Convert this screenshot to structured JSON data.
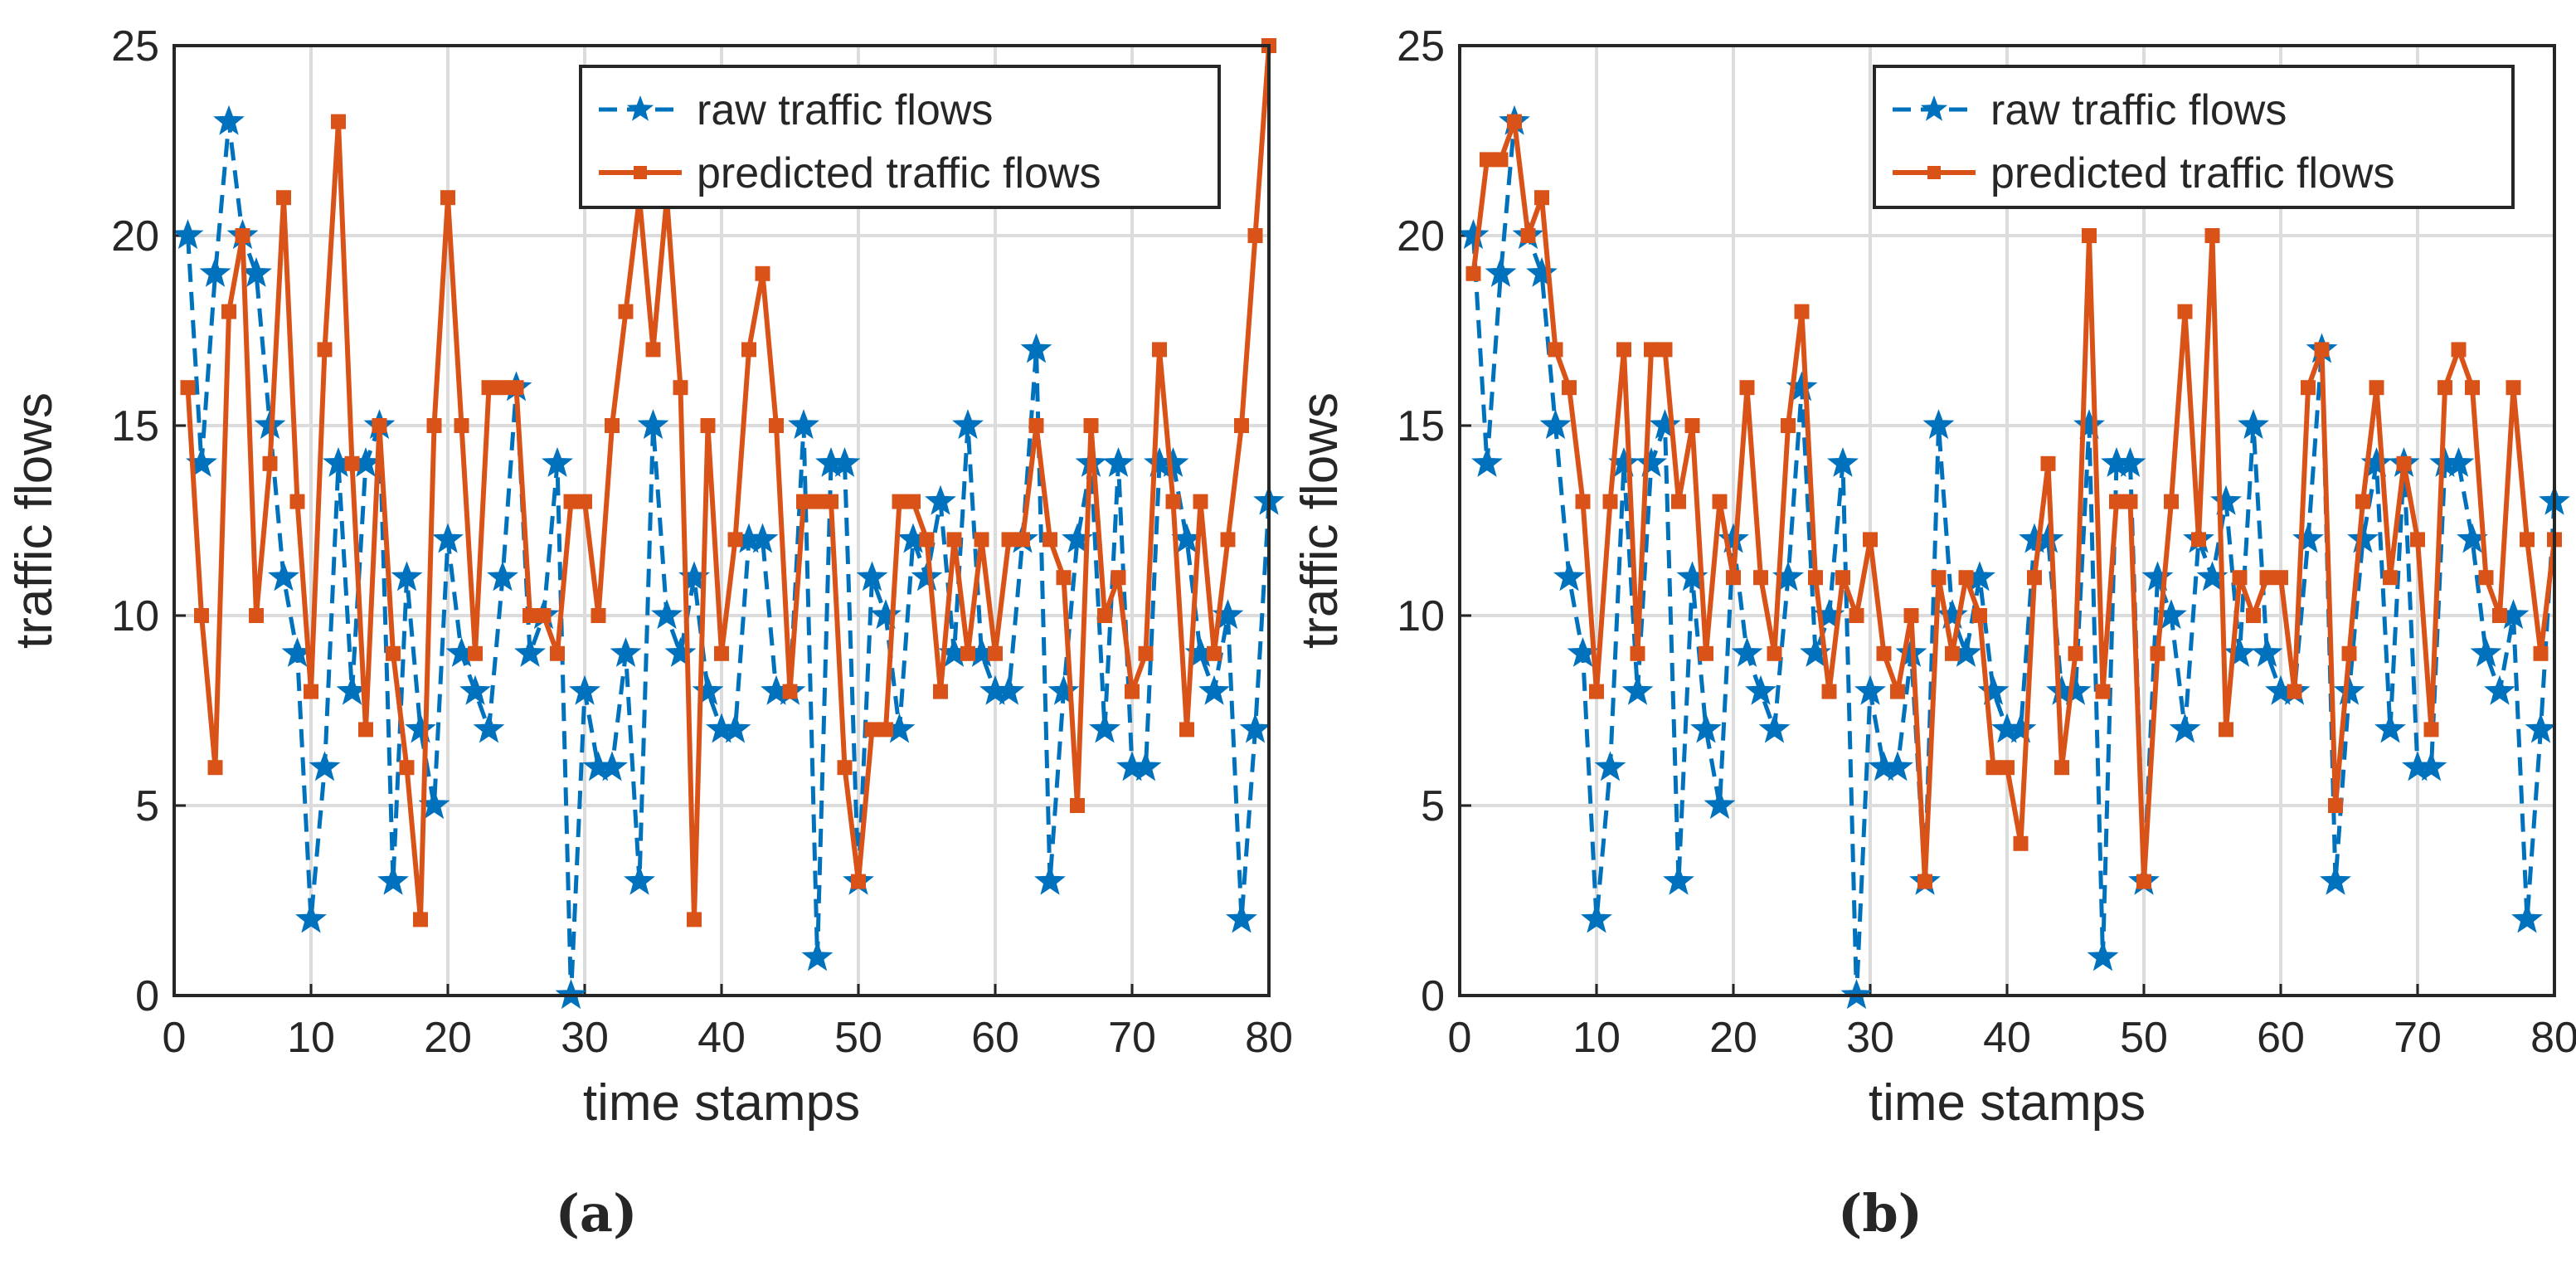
{
  "chart_data": [
    {
      "panel": "(a)",
      "type": "line",
      "xlabel": "time stamps",
      "ylabel": "traffic flows",
      "xlim": [
        0,
        80
      ],
      "ylim": [
        0,
        25
      ],
      "xticks": [
        "0",
        "10",
        "20",
        "30",
        "40",
        "50",
        "60",
        "70",
        "80"
      ],
      "yticks": [
        "0",
        "5",
        "10",
        "15",
        "20",
        "25"
      ],
      "grid": true,
      "legend_position": "top-right",
      "x": [
        1,
        2,
        3,
        4,
        5,
        6,
        7,
        8,
        9,
        10,
        11,
        12,
        13,
        14,
        15,
        16,
        17,
        18,
        19,
        20,
        21,
        22,
        23,
        24,
        25,
        26,
        27,
        28,
        29,
        30,
        31,
        32,
        33,
        34,
        35,
        36,
        37,
        38,
        39,
        40,
        41,
        42,
        43,
        44,
        45,
        46,
        47,
        48,
        49,
        50,
        51,
        52,
        53,
        54,
        55,
        56,
        57,
        58,
        59,
        60,
        61,
        62,
        63,
        64,
        65,
        66,
        67,
        68,
        69,
        70,
        71,
        72,
        73,
        74,
        75,
        76,
        77,
        78,
        79,
        80
      ],
      "series": [
        {
          "name": "raw traffic flows",
          "color": "#0072BD",
          "line": "dashed",
          "marker": "star",
          "values": [
            20,
            14,
            19,
            23,
            20,
            19,
            15,
            11,
            9,
            2,
            6,
            14,
            8,
            14,
            15,
            3,
            11,
            7,
            5,
            12,
            9,
            8,
            7,
            11,
            16,
            9,
            10,
            14,
            0,
            8,
            6,
            6,
            9,
            3,
            15,
            10,
            9,
            11,
            8,
            7,
            7,
            12,
            12,
            8,
            8,
            15,
            1,
            14,
            14,
            3,
            11,
            10,
            7,
            12,
            11,
            13,
            9,
            15,
            9,
            8,
            8,
            12,
            17,
            3,
            8,
            12,
            14,
            7,
            14,
            6,
            6,
            14,
            14,
            12,
            9,
            8,
            10,
            2,
            7,
            13
          ]
        },
        {
          "name": "predicted traffic flows",
          "color": "#D95319",
          "line": "solid",
          "marker": "square",
          "values": [
            16,
            10,
            6,
            18,
            20,
            10,
            14,
            21,
            13,
            8,
            17,
            23,
            14,
            7,
            15,
            9,
            6,
            2,
            15,
            21,
            15,
            9,
            16,
            16,
            16,
            10,
            10,
            9,
            13,
            13,
            10,
            15,
            18,
            21,
            17,
            21,
            16,
            2,
            15,
            9,
            12,
            17,
            19,
            15,
            8,
            13,
            13,
            13,
            6,
            3,
            7,
            7,
            13,
            13,
            12,
            8,
            12,
            9,
            12,
            9,
            12,
            12,
            15,
            12,
            11,
            5,
            15,
            10,
            11,
            8,
            9,
            17,
            13,
            7,
            13,
            9,
            12,
            15,
            20,
            25
          ]
        }
      ]
    },
    {
      "panel": "(b)",
      "type": "line",
      "xlabel": "time stamps",
      "ylabel": "traffic flows",
      "xlim": [
        0,
        80
      ],
      "ylim": [
        0,
        25
      ],
      "xticks": [
        "0",
        "10",
        "20",
        "30",
        "40",
        "50",
        "60",
        "70",
        "80"
      ],
      "yticks": [
        "0",
        "5",
        "10",
        "15",
        "20",
        "25"
      ],
      "grid": true,
      "legend_position": "top-right",
      "x": [
        1,
        2,
        3,
        4,
        5,
        6,
        7,
        8,
        9,
        10,
        11,
        12,
        13,
        14,
        15,
        16,
        17,
        18,
        19,
        20,
        21,
        22,
        23,
        24,
        25,
        26,
        27,
        28,
        29,
        30,
        31,
        32,
        33,
        34,
        35,
        36,
        37,
        38,
        39,
        40,
        41,
        42,
        43,
        44,
        45,
        46,
        47,
        48,
        49,
        50,
        51,
        52,
        53,
        54,
        55,
        56,
        57,
        58,
        59,
        60,
        61,
        62,
        63,
        64,
        65,
        66,
        67,
        68,
        69,
        70,
        71,
        72,
        73,
        74,
        75,
        76,
        77,
        78,
        79,
        80
      ],
      "series": [
        {
          "name": "raw traffic flows",
          "color": "#0072BD",
          "line": "dashed",
          "marker": "star",
          "values": [
            20,
            14,
            19,
            23,
            20,
            19,
            15,
            11,
            9,
            2,
            6,
            14,
            8,
            14,
            15,
            3,
            11,
            7,
            5,
            12,
            9,
            8,
            7,
            11,
            16,
            9,
            10,
            14,
            0,
            8,
            6,
            6,
            9,
            3,
            15,
            10,
            9,
            11,
            8,
            7,
            7,
            12,
            12,
            8,
            8,
            15,
            1,
            14,
            14,
            3,
            11,
            10,
            7,
            12,
            11,
            13,
            9,
            15,
            9,
            8,
            8,
            12,
            17,
            3,
            8,
            12,
            14,
            7,
            14,
            6,
            6,
            14,
            14,
            12,
            9,
            8,
            10,
            2,
            7,
            13
          ]
        },
        {
          "name": "predicted traffic flows",
          "color": "#D95319",
          "line": "solid",
          "marker": "square",
          "values": [
            19,
            22,
            22,
            23,
            20,
            21,
            17,
            16,
            13,
            8,
            13,
            17,
            9,
            17,
            17,
            13,
            15,
            9,
            13,
            11,
            16,
            11,
            9,
            15,
            18,
            11,
            8,
            11,
            10,
            12,
            9,
            8,
            10,
            3,
            11,
            9,
            11,
            10,
            6,
            6,
            4,
            11,
            14,
            6,
            9,
            20,
            8,
            13,
            13,
            3,
            9,
            13,
            18,
            12,
            20,
            7,
            11,
            10,
            11,
            11,
            8,
            16,
            17,
            5,
            9,
            13,
            16,
            11,
            14,
            12,
            7,
            16,
            17,
            16,
            11,
            10,
            16,
            12,
            9,
            12
          ]
        }
      ]
    }
  ],
  "captions": {
    "a": "(a)",
    "b": "(b)"
  }
}
